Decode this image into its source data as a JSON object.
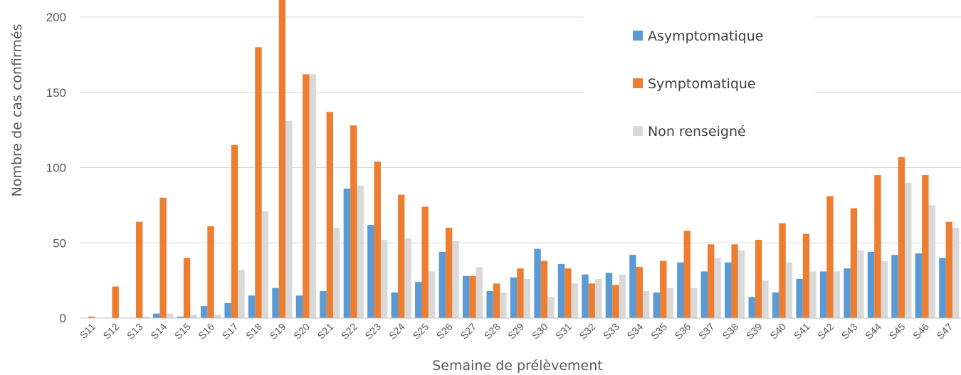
{
  "chart_data": {
    "type": "bar",
    "title": "",
    "xlabel": "Semaine de prélèvement",
    "ylabel": "Nombre de cas confirmés",
    "ylim": [
      0,
      210
    ],
    "yticks": [
      0,
      50,
      100,
      150,
      200
    ],
    "grid": true,
    "legend_position": "top-right",
    "categories": [
      "S11",
      "S12",
      "S13",
      "S14",
      "S15",
      "S16",
      "S17",
      "S18",
      "S19",
      "S20",
      "S21",
      "S22",
      "S23",
      "S24",
      "S25",
      "S26",
      "S27",
      "S28",
      "S29",
      "S30",
      "S31",
      "S32",
      "S33",
      "S34",
      "S35",
      "S36",
      "S37",
      "S38",
      "S39",
      "S40",
      "S41",
      "S42",
      "S43",
      "S44",
      "S45",
      "S46",
      "S47"
    ],
    "series": [
      {
        "name": "Asymptomatique",
        "color": "#5B9BD5",
        "values": [
          0,
          0,
          0,
          3,
          1,
          8,
          10,
          15,
          20,
          15,
          18,
          86,
          62,
          17,
          24,
          44,
          28,
          18,
          27,
          46,
          36,
          29,
          30,
          42,
          17,
          37,
          31,
          37,
          14,
          17,
          26,
          31,
          33,
          44,
          42,
          43,
          40
        ]
      },
      {
        "name": "Symptomatique",
        "color": "#ED7D31",
        "values": [
          1,
          21,
          64,
          80,
          40,
          61,
          115,
          180,
          215,
          162,
          137,
          128,
          104,
          82,
          74,
          60,
          28,
          23,
          33,
          38,
          33,
          23,
          22,
          34,
          38,
          58,
          49,
          49,
          52,
          63,
          56,
          81,
          73,
          95,
          107,
          95,
          64
        ]
      },
      {
        "name": "Non renseigné",
        "color": "#D9D9D9",
        "values": [
          0,
          0,
          1,
          3,
          2,
          2,
          32,
          71,
          131,
          162,
          60,
          88,
          52,
          53,
          31,
          51,
          34,
          17,
          26,
          14,
          23,
          26,
          29,
          18,
          20,
          20,
          40,
          45,
          25,
          37,
          31,
          31,
          45,
          38,
          90,
          75,
          60
        ]
      }
    ]
  }
}
